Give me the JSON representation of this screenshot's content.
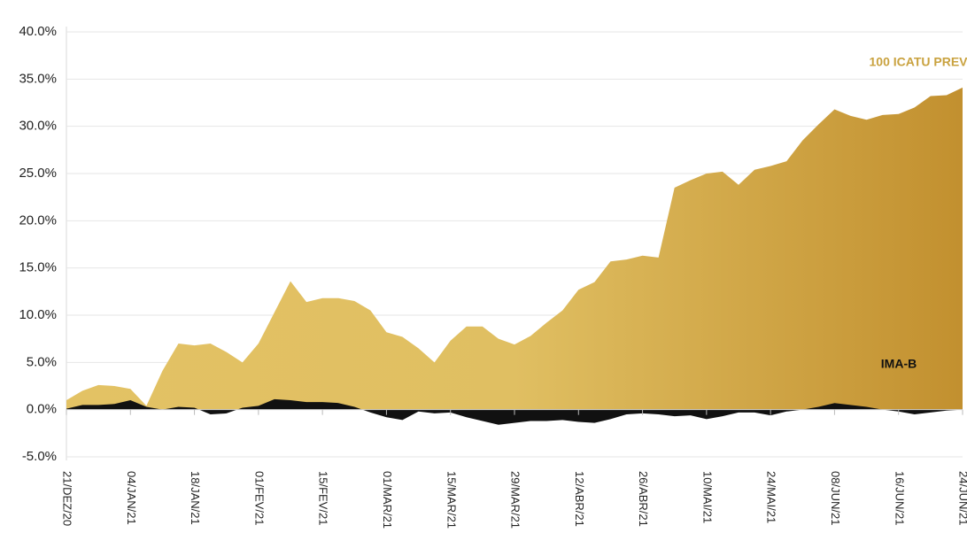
{
  "chart_data": {
    "type": "area",
    "categories": [
      "21/DEZ/20",
      null,
      null,
      null,
      "04/JAN/21",
      null,
      null,
      null,
      "18/JAN/21",
      null,
      null,
      null,
      "01/FEV/21",
      null,
      null,
      null,
      "15/FEV/21",
      null,
      null,
      null,
      "01/MAR/21",
      null,
      null,
      null,
      "15/MAR/21",
      null,
      null,
      null,
      "29/MAR/21",
      null,
      null,
      null,
      "12/ABR/21",
      null,
      null,
      null,
      "26/ABR/21",
      null,
      null,
      null,
      "10/MAI/21",
      null,
      null,
      null,
      "24/MAI/21",
      null,
      null,
      null,
      "08/JUN/21",
      null,
      null,
      null,
      "16/JUN/21",
      null,
      null,
      null,
      "24/JUN/21"
    ],
    "series": [
      {
        "name": "100 ICATU PREV",
        "color": "#e0bf62",
        "values": [
          1.0,
          2.0,
          2.6,
          2.5,
          2.2,
          0.4,
          4.1,
          7.0,
          6.8,
          7.0,
          6.1,
          5.0,
          7.0,
          10.3,
          13.6,
          11.4,
          11.8,
          11.8,
          11.5,
          10.5,
          8.2,
          7.7,
          6.5,
          5.0,
          7.3,
          8.8,
          8.8,
          7.5,
          6.9,
          7.8,
          9.2,
          10.5,
          12.7,
          13.5,
          15.7,
          15.9,
          16.3,
          16.1,
          23.5,
          24.3,
          25.0,
          25.2,
          23.8,
          25.4,
          25.8,
          26.3,
          28.5,
          30.2,
          31.8,
          31.1,
          30.7,
          31.2,
          31.3,
          32.0,
          33.2,
          33.3,
          34.1
        ]
      },
      {
        "name": "IMA-B",
        "color": "#111111",
        "values": [
          0.1,
          0.5,
          0.5,
          0.6,
          1.0,
          0.3,
          0.0,
          0.3,
          0.2,
          -0.5,
          -0.4,
          0.2,
          0.4,
          1.1,
          1.0,
          0.8,
          0.8,
          0.7,
          0.3,
          -0.3,
          -0.8,
          -1.1,
          -0.2,
          -0.4,
          -0.3,
          -0.8,
          -1.2,
          -1.6,
          -1.4,
          -1.2,
          -1.2,
          -1.1,
          -1.3,
          -1.4,
          -1.0,
          -0.5,
          -0.4,
          -0.5,
          -0.7,
          -0.6,
          -1.0,
          -0.7,
          -0.3,
          -0.3,
          -0.6,
          -0.2,
          0.0,
          0.3,
          0.7,
          0.5,
          0.3,
          0.0,
          -0.2,
          -0.5,
          -0.3,
          -0.1,
          0.0
        ]
      }
    ],
    "ylim": [
      -5,
      40
    ],
    "yticks": [
      {
        "value": -5,
        "label": "-5.0%"
      },
      {
        "value": 0,
        "label": "0.0%"
      },
      {
        "value": 5,
        "label": "5.0%"
      },
      {
        "value": 10,
        "label": "10.0%"
      },
      {
        "value": 15,
        "label": "15.0%"
      },
      {
        "value": 20,
        "label": "20.0%"
      },
      {
        "value": 25,
        "label": "25.0%"
      },
      {
        "value": 30,
        "label": "30.0%"
      },
      {
        "value": 35,
        "label": "35.0%"
      },
      {
        "value": 40,
        "label": "40.0%"
      }
    ],
    "grid": true
  }
}
